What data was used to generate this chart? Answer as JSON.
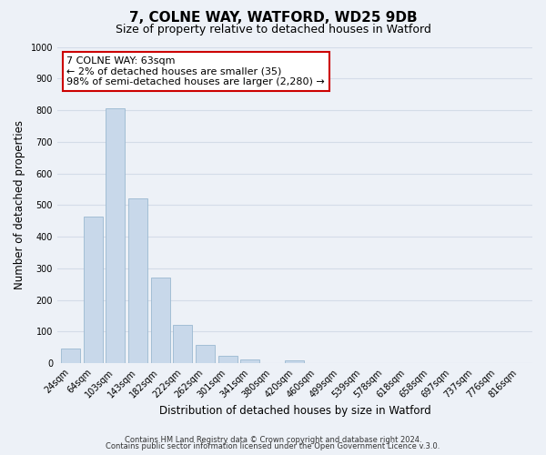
{
  "title": "7, COLNE WAY, WATFORD, WD25 9DB",
  "subtitle": "Size of property relative to detached houses in Watford",
  "xlabel": "Distribution of detached houses by size in Watford",
  "ylabel": "Number of detached properties",
  "bar_labels": [
    "24sqm",
    "64sqm",
    "103sqm",
    "143sqm",
    "182sqm",
    "222sqm",
    "262sqm",
    "301sqm",
    "341sqm",
    "380sqm",
    "420sqm",
    "460sqm",
    "499sqm",
    "539sqm",
    "578sqm",
    "618sqm",
    "658sqm",
    "697sqm",
    "737sqm",
    "776sqm",
    "816sqm"
  ],
  "bar_heights": [
    47,
    462,
    805,
    520,
    272,
    122,
    57,
    22,
    12,
    0,
    8,
    0,
    0,
    0,
    0,
    0,
    0,
    0,
    0,
    0,
    0
  ],
  "bar_color": "#c8d8ea",
  "bar_edge_color": "#9ab8d0",
  "annotation_line1": "7 COLNE WAY: 63sqm",
  "annotation_line2": "← 2% of detached houses are smaller (35)",
  "annotation_line3": "98% of semi-detached houses are larger (2,280) →",
  "annotation_box_color": "#ffffff",
  "annotation_box_edge_color": "#cc0000",
  "ylim": [
    0,
    1000
  ],
  "yticks": [
    0,
    100,
    200,
    300,
    400,
    500,
    600,
    700,
    800,
    900,
    1000
  ],
  "grid_color": "#d4dce8",
  "footer_line1": "Contains HM Land Registry data © Crown copyright and database right 2024.",
  "footer_line2": "Contains public sector information licensed under the Open Government Licence v.3.0.",
  "background_color": "#edf1f7",
  "fig_width": 6.0,
  "fig_height": 5.0,
  "title_fontsize": 11,
  "subtitle_fontsize": 9,
  "axis_label_fontsize": 8.5,
  "tick_fontsize": 7,
  "annotation_fontsize": 8,
  "footer_fontsize": 6
}
